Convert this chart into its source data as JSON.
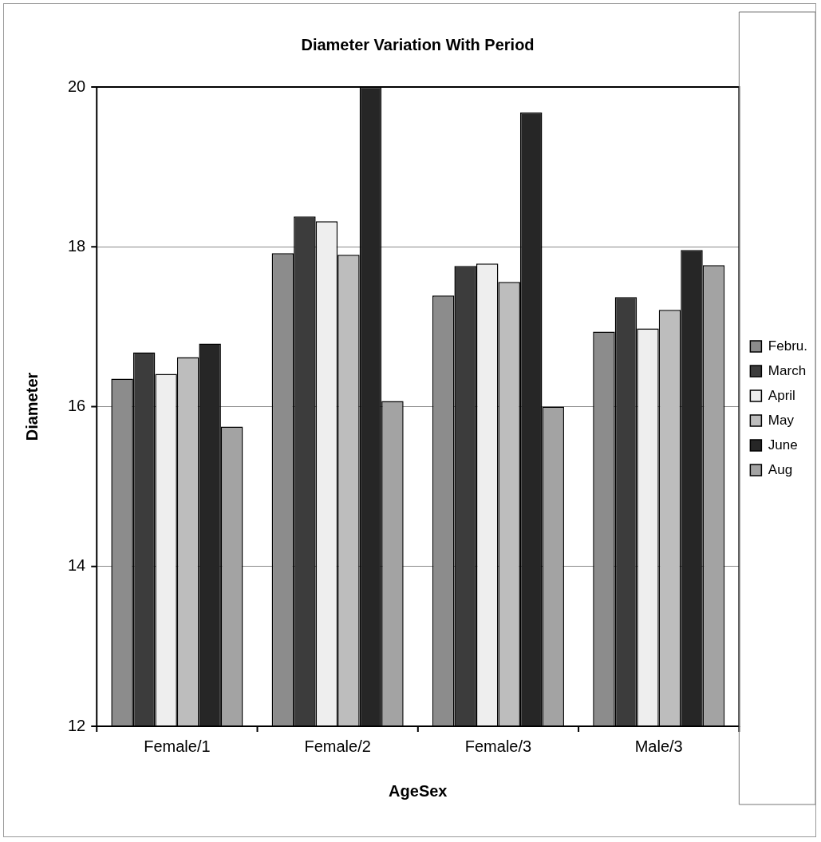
{
  "chart_data": {
    "type": "bar",
    "title": "Diameter Variation With Period",
    "xlabel": "AgeSex",
    "ylabel": "Diameter",
    "categories": [
      "Female/1",
      "Female/2",
      "Female/3",
      "Male/3"
    ],
    "series": [
      {
        "name": "Febru.",
        "color": "#8c8c8c",
        "values": [
          16.35,
          17.92,
          17.39,
          16.94
        ]
      },
      {
        "name": "March",
        "color": "#3c3c3c",
        "values": [
          16.68,
          18.38,
          17.76,
          17.37
        ]
      },
      {
        "name": "April",
        "color": "#eeeeee",
        "values": [
          16.41,
          18.32,
          17.79,
          16.98
        ]
      },
      {
        "name": "May",
        "color": "#bdbdbd",
        "values": [
          16.62,
          17.9,
          17.56,
          17.21
        ]
      },
      {
        "name": "June",
        "color": "#262626",
        "values": [
          16.79,
          20,
          19.68,
          17.96
        ]
      },
      {
        "name": "Aug",
        "color": "#a3a3a3",
        "values": [
          15.75,
          16.07,
          16,
          17.77
        ]
      }
    ],
    "ylim": [
      12,
      20
    ],
    "yticks": [
      12,
      14,
      16,
      18,
      20
    ],
    "grid": "y",
    "legend": "right"
  }
}
